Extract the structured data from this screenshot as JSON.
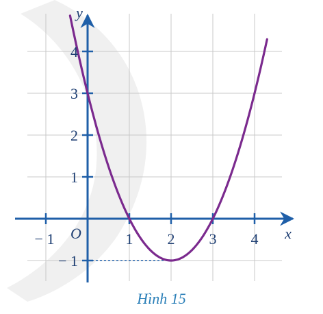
{
  "chart_data": {
    "type": "line",
    "caption": "Hình 15",
    "xlabel": "x",
    "ylabel": "y",
    "origin_label": "O",
    "xlim": [
      -1,
      4.8
    ],
    "ylim": [
      -1.6,
      4.8
    ],
    "x_ticks": [
      {
        "value": -1,
        "label": "− 1"
      },
      {
        "value": 1,
        "label": "1"
      },
      {
        "value": 2,
        "label": "2"
      },
      {
        "value": 3,
        "label": "3"
      },
      {
        "value": 4,
        "label": "4"
      }
    ],
    "y_ticks": [
      {
        "value": -1,
        "label": "− 1"
      },
      {
        "value": 1,
        "label": "1"
      },
      {
        "value": 2,
        "label": "2"
      },
      {
        "value": 3,
        "label": "3"
      },
      {
        "value": 4,
        "label": "4"
      }
    ],
    "grid": true,
    "series": [
      {
        "function": "y = x^2 - 4x + 3",
        "color": "#7b2a8e",
        "x": [
          -0.42,
          0,
          0.5,
          1,
          1.5,
          2,
          2.5,
          3,
          3.5,
          4,
          4.3
        ],
        "y": [
          4.86,
          3,
          1.25,
          0,
          -0.75,
          -1,
          -0.75,
          0,
          1.25,
          3,
          4.69
        ]
      }
    ],
    "annotations": [
      {
        "type": "dashed-guide",
        "from": [
          0,
          -1
        ],
        "to": [
          2,
          -1
        ]
      }
    ],
    "colors": {
      "axis": "#1f5fa8",
      "grid": "#c8c8c8",
      "curve": "#7b2a8e",
      "text": "#1f3f73",
      "caption": "#2a7fb8"
    }
  }
}
